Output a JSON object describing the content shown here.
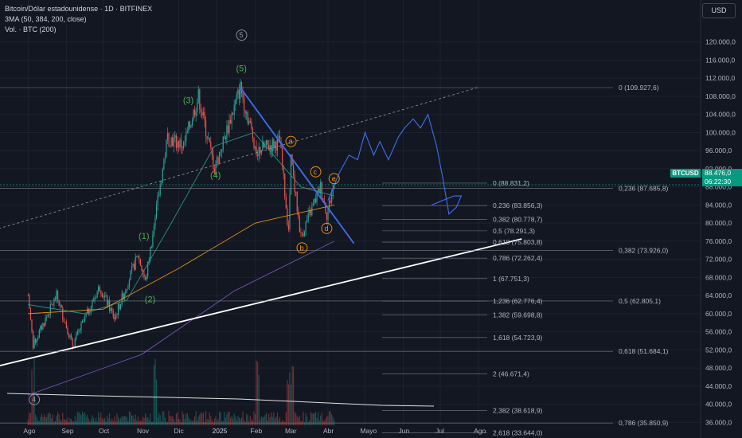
{
  "legend": {
    "symbol": "Bitcoin/Dólar estadounidense · 1D · BITFINEX",
    "indicator": "3MA (50, 384, 200, close)",
    "volume": "Vol. · BTC (200)"
  },
  "currency_button": "USD",
  "last_price": {
    "ticker": "BTCUSD",
    "value": "88.476,0",
    "countdown": "06:22:30"
  },
  "colors": {
    "background": "#131722",
    "up": "#26a69a",
    "down": "#ef5350",
    "ma_fast": "#2a9d8f",
    "ma_mid": "#7e57c2",
    "ma_slow": "#f59e0b",
    "trendline": "#ffffff",
    "resistance": "#3d6ff0",
    "wave_green": "#4caf50",
    "wave_orange": "#ff9800",
    "last_price": "#089981"
  },
  "chart_data": {
    "type": "candlestick",
    "x_ticks": [
      "Ago",
      "Sep",
      "Oct",
      "Nov",
      "Dic",
      "2025",
      "Feb",
      "Mar",
      "Abr",
      "Mayo",
      "Jun",
      "Jul",
      "Ago"
    ],
    "y_ticks": [
      "120.000,0",
      "116.000,0",
      "112.000,0",
      "108.000,0",
      "104.000,0",
      "100.000,0",
      "96.000,0",
      "92.000,0",
      "88.000,0",
      "84.000,0",
      "80.000,0",
      "76.000,0",
      "72.000,0",
      "68.000,0",
      "64.000,0",
      "60.000,0",
      "56.000,0",
      "52.000,0",
      "48.000,0",
      "44.000,0",
      "40.000,0",
      "36.000,0"
    ],
    "y_axis": "linear",
    "ylim": [
      35000,
      124000
    ],
    "grid": true,
    "last_close": 88476,
    "price_path": [
      {
        "date": "2024-08-01",
        "price": 64000
      },
      {
        "date": "2024-08-05",
        "price": 53000
      },
      {
        "date": "2024-08-24",
        "price": 64000
      },
      {
        "date": "2024-09-06",
        "price": 53000
      },
      {
        "date": "2024-09-28",
        "price": 66000
      },
      {
        "date": "2024-10-10",
        "price": 59000
      },
      {
        "date": "2024-10-29",
        "price": 73000
      },
      {
        "date": "2024-11-04",
        "price": 67000
      },
      {
        "date": "2024-11-22",
        "price": 99000
      },
      {
        "date": "2024-12-05",
        "price": 97000
      },
      {
        "date": "2024-12-17",
        "price": 108000
      },
      {
        "date": "2024-12-30",
        "price": 92000
      },
      {
        "date": "2025-01-20",
        "price": 109900
      },
      {
        "date": "2025-02-02",
        "price": 96000
      },
      {
        "date": "2025-02-21",
        "price": 98000
      },
      {
        "date": "2025-02-28",
        "price": 78000
      },
      {
        "date": "2025-03-02",
        "price": 94000
      },
      {
        "date": "2025-03-10",
        "price": 77000
      },
      {
        "date": "2025-03-26",
        "price": 88000
      },
      {
        "date": "2025-03-31",
        "price": 82000
      },
      {
        "date": "2025-04-06",
        "price": 88476
      }
    ],
    "moving_averages": [
      {
        "period": 50,
        "values": [
          {
            "date": "2024-08-01",
            "price": 62000
          },
          {
            "date": "2024-09-15",
            "price": 60000
          },
          {
            "date": "2024-10-20",
            "price": 63000
          },
          {
            "date": "2024-11-25",
            "price": 80000
          },
          {
            "date": "2024-12-30",
            "price": 97000
          },
          {
            "date": "2025-01-31",
            "price": 100000
          },
          {
            "date": "2025-03-10",
            "price": 88000
          },
          {
            "date": "2025-04-06",
            "price": 86000
          }
        ]
      },
      {
        "period": 200,
        "values": [
          {
            "date": "2024-08-01",
            "price": 60000
          },
          {
            "date": "2024-10-01",
            "price": 61000
          },
          {
            "date": "2024-12-01",
            "price": 70000
          },
          {
            "date": "2025-02-01",
            "price": 80000
          },
          {
            "date": "2025-04-06",
            "price": 84000
          }
        ]
      },
      {
        "period": 384,
        "values": [
          {
            "date": "2024-08-01",
            "price": 42000
          },
          {
            "date": "2024-11-01",
            "price": 51000
          },
          {
            "date": "2025-01-15",
            "price": 65000
          },
          {
            "date": "2025-04-06",
            "price": 76000
          }
        ]
      }
    ],
    "volume_peaks": [
      "2024-08-05",
      "2024-11-12",
      "2025-02-03",
      "2025-02-28",
      "2025-03-03"
    ]
  },
  "annotations": {
    "wave_labels": [
      {
        "text": "(1)",
        "date": "2024-11-03",
        "price": 76500,
        "color": "green"
      },
      {
        "text": "(2)",
        "date": "2024-11-08",
        "price": 62500,
        "color": "green"
      },
      {
        "text": "(3)",
        "date": "2024-12-09",
        "price": 106500,
        "color": "green"
      },
      {
        "text": "(4)",
        "date": "2024-12-31",
        "price": 90000,
        "color": "green"
      },
      {
        "text": "(5)",
        "date": "2025-01-21",
        "price": 113500,
        "color": "green"
      },
      {
        "text": "5",
        "date": "2025-01-21",
        "price": 121000,
        "color": "gray",
        "circled": true
      },
      {
        "text": "4",
        "date": "2024-08-06",
        "price": 40500,
        "color": "gray",
        "circled": true
      },
      {
        "text": "a",
        "date": "2025-03-02",
        "price": 97500,
        "color": "orange",
        "circled": true
      },
      {
        "text": "b",
        "date": "2025-03-11",
        "price": 74000,
        "color": "orange",
        "circled": true
      },
      {
        "text": "c",
        "date": "2025-03-22",
        "price": 90800,
        "color": "orange",
        "circled": true
      },
      {
        "text": "d",
        "date": "2025-03-31",
        "price": 78300,
        "color": "orange",
        "circled": true
      },
      {
        "text": "e",
        "date": "2025-04-06",
        "price": 89300,
        "color": "orange",
        "circled": true
      }
    ],
    "fib_upper": [
      {
        "label": "0 (109.927,6)",
        "price": 109927.6
      },
      {
        "label": "0,236 (87.685,8)",
        "price": 87685.8
      },
      {
        "label": "0,382 (73.926,0)",
        "price": 73926.0
      },
      {
        "label": "0,5 (62.805,1)",
        "price": 62805.1
      },
      {
        "label": "0,618 (51.684,1)",
        "price": 51684.1
      },
      {
        "label": "0,786 (35.850,9)",
        "price": 35850.9
      }
    ],
    "fib_lower": [
      {
        "label": "0 (88.831,2)",
        "price": 88831.2
      },
      {
        "label": "0,236 (83.856,3)",
        "price": 83856.3
      },
      {
        "label": "0,382 (80.778,7)",
        "price": 80778.7
      },
      {
        "label": "0,5 (78.291,3)",
        "price": 78291.3
      },
      {
        "label": "0,618 (75.803,8)",
        "price": 75803.8
      },
      {
        "label": "0,786 (72.262,4)",
        "price": 72262.4
      },
      {
        "label": "1 (67.751,3)",
        "price": 67751.3
      },
      {
        "label": "1,236 (62.776,4)",
        "price": 62776.4
      },
      {
        "label": "1,382 (59.698,8)",
        "price": 59698.8
      },
      {
        "label": "1,618 (54.723,9)",
        "price": 54723.9
      },
      {
        "label": "2 (46.671,4)",
        "price": 46671.4
      },
      {
        "label": "2,382 (38.618,9)",
        "price": 38618.9
      },
      {
        "label": "2,618 (33.644,0)",
        "price": 33644.0
      }
    ],
    "trendline": [
      {
        "date": "2024-06-01",
        "price": 46000
      },
      {
        "date": "2025-09-05",
        "price": 76500
      }
    ],
    "channel_line": [
      {
        "date": "2024-06-01",
        "price": 75800
      },
      {
        "date": "2025-08-01",
        "price": 110000
      }
    ],
    "resistance_line": [
      {
        "date": "2025-01-20",
        "price": 109900
      },
      {
        "date": "2025-04-22",
        "price": 75500
      }
    ],
    "projection": [
      {
        "date": "2025-04-01",
        "price": 85000
      },
      {
        "date": "2025-04-10",
        "price": 91000
      },
      {
        "date": "2025-04-18",
        "price": 95000
      },
      {
        "date": "2025-04-25",
        "price": 94000
      },
      {
        "date": "2025-05-01",
        "price": 100000
      },
      {
        "date": "2025-05-08",
        "price": 95000
      },
      {
        "date": "2025-05-13",
        "price": 98000
      },
      {
        "date": "2025-05-20",
        "price": 94000
      },
      {
        "date": "2025-05-28",
        "price": 99000
      },
      {
        "date": "2025-06-02",
        "price": 101000
      },
      {
        "date": "2025-06-09",
        "price": 103000
      },
      {
        "date": "2025-06-15",
        "price": 101000
      },
      {
        "date": "2025-06-21",
        "price": 104000
      },
      {
        "date": "2025-06-28",
        "price": 97000
      },
      {
        "date": "2025-07-03",
        "price": 90000
      },
      {
        "date": "2025-07-08",
        "price": 82000
      },
      {
        "date": "2025-07-14",
        "price": 83500
      },
      {
        "date": "2025-07-18",
        "price": 86000
      },
      {
        "date": "2025-07-12",
        "price": 86000
      },
      {
        "date": "2025-06-24",
        "price": 84000
      }
    ]
  }
}
